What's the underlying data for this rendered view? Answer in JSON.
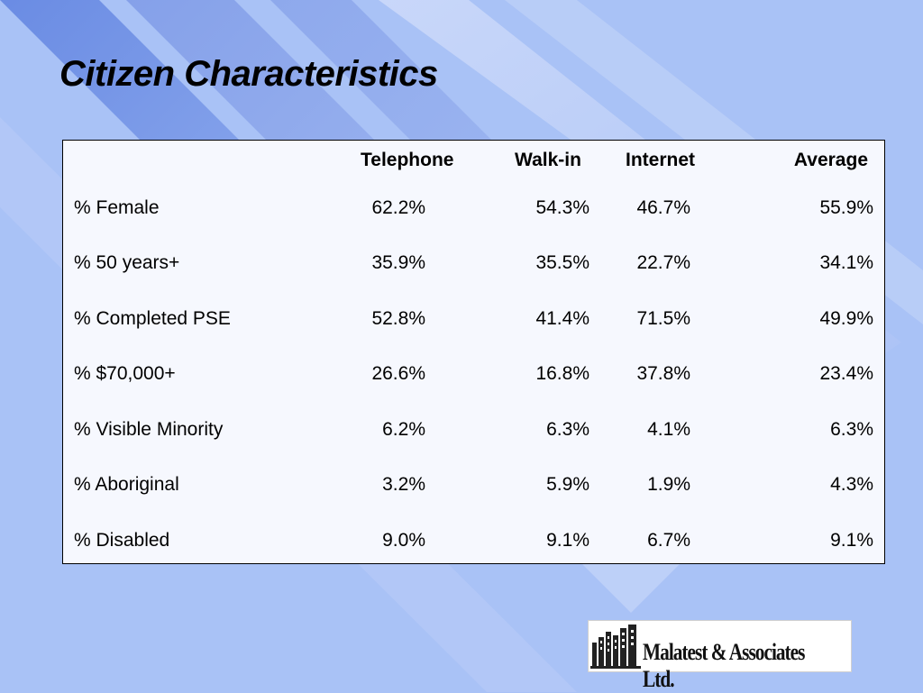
{
  "slide": {
    "title": "Citizen Characteristics"
  },
  "table": {
    "headers": [
      "",
      "Telephone",
      "Walk-in",
      "Internet",
      "Average"
    ],
    "rows": [
      [
        "% Female",
        "62.2%",
        "54.3%",
        "46.7%",
        "55.9%"
      ],
      [
        "% 50 years+",
        "35.9%",
        "35.5%",
        "22.7%",
        "34.1%"
      ],
      [
        "% Completed PSE",
        "52.8%",
        "41.4%",
        "71.5%",
        "49.9%"
      ],
      [
        "% $70,000+",
        "26.6%",
        "16.8%",
        "37.8%",
        "23.4%"
      ],
      [
        "% Visible Minority",
        "6.2%",
        "6.3%",
        "4.1%",
        "6.3%"
      ],
      [
        "% Aboriginal",
        "3.2%",
        "5.9%",
        "1.9%",
        "4.3%"
      ],
      [
        "% Disabled",
        "9.0%",
        "9.1%",
        "6.7%",
        "9.1%"
      ]
    ]
  },
  "logo": {
    "text": "Malatest & Associates Ltd.",
    "icon": "building-logo-icon"
  },
  "colors": {
    "background": "#a9c2f6",
    "stripe_dark": "#6f8fe4",
    "stripe_light": "#c9d7fa",
    "panel": "#f6f8fe"
  }
}
